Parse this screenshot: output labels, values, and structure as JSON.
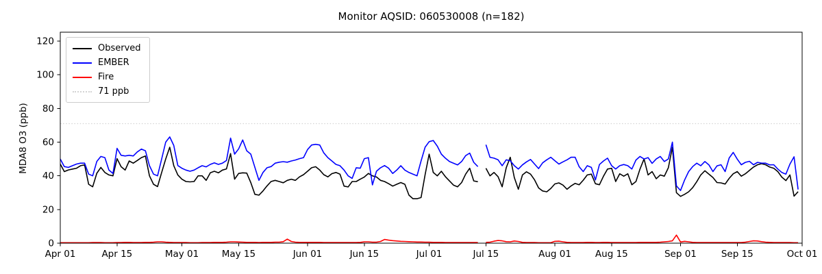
{
  "title": "Monitor AQSID: 060530008 (n=182)",
  "y_axis_label": "MDA8 O3 (ppb)",
  "colors": {
    "observed": "#000000",
    "ember": "#0000ff",
    "fire": "#ff0000",
    "threshold": "#d3d3d3",
    "axis": "#000000",
    "legend_border": "#cccccc"
  },
  "legend": [
    {
      "label": "Observed",
      "color": "#000000",
      "style": "solid"
    },
    {
      "label": "EMBER",
      "color": "#0000ff",
      "style": "solid"
    },
    {
      "label": "Fire",
      "color": "#ff0000",
      "style": "solid"
    },
    {
      "label": "71 ppb",
      "color": "#d3d3d3",
      "style": "dotted"
    }
  ],
  "chart_data": {
    "type": "line",
    "title": "Monitor AQSID: 060530008 (n=182)",
    "xlabel": "",
    "ylabel": "MDA8 O3 (ppb)",
    "ylim": [
      0,
      125.3
    ],
    "y_ticks": [
      0,
      20,
      40,
      60,
      80,
      100,
      120
    ],
    "x_total_days": 183,
    "x_tick_labels": [
      "Apr 01",
      "Apr 15",
      "May 01",
      "May 15",
      "Jun 01",
      "Jun 15",
      "Jul 01",
      "Jul 15",
      "Aug 01",
      "Aug 15",
      "Sep 01",
      "Sep 15",
      "Oct 01"
    ],
    "x_tick_days": [
      0,
      14,
      30,
      44,
      61,
      75,
      91,
      105,
      122,
      136,
      153,
      167,
      183
    ],
    "threshold": {
      "label": "71 ppb",
      "value": 71,
      "color": "#d3d3d3",
      "style": "dotted"
    },
    "legend_position": "upper left",
    "grid": false,
    "n_observations": 182,
    "missing_day_index": 104,
    "series": [
      {
        "name": "Observed",
        "color": "#000000",
        "values": [
          47.0,
          42.5,
          43.5,
          44.0,
          44.5,
          46.0,
          46.5,
          35.0,
          33.5,
          41.5,
          45.0,
          42.0,
          40.5,
          40.0,
          50.2,
          45.4,
          43.4,
          48.8,
          47.5,
          49.1,
          50.8,
          51.8,
          40.0,
          35.0,
          33.6,
          42.0,
          50.0,
          57.0,
          46.0,
          40.5,
          38.0,
          36.6,
          36.4,
          36.6,
          40.0,
          40.0,
          37.3,
          41.8,
          42.7,
          41.8,
          43.4,
          44.1,
          53.2,
          38.0,
          41.4,
          41.8,
          41.6,
          36.0,
          29.0,
          28.5,
          31.0,
          34.0,
          36.6,
          37.3,
          36.6,
          35.9,
          37.3,
          38.0,
          37.3,
          39.4,
          40.7,
          42.7,
          44.8,
          45.4,
          43.4,
          40.7,
          39.4,
          41.3,
          42.0,
          41.0,
          33.9,
          33.4,
          36.6,
          36.6,
          38.0,
          39.3,
          41.4,
          40.0,
          39.3,
          37.3,
          36.6,
          35.3,
          33.9,
          35.0,
          36.0,
          35.0,
          28.5,
          26.4,
          26.4,
          27.1,
          40.7,
          52.9,
          42.0,
          40.0,
          42.7,
          39.5,
          37.0,
          34.5,
          33.5,
          36.0,
          41.0,
          44.5,
          37.0,
          36.5,
          null,
          44.5,
          40.0,
          42.0,
          39.5,
          33.5,
          44.8,
          51.0,
          39.0,
          32.0,
          40.5,
          42.4,
          41.0,
          37.6,
          32.8,
          31.0,
          30.5,
          32.5,
          35.2,
          35.8,
          34.5,
          32.0,
          34.0,
          35.5,
          34.7,
          37.4,
          40.5,
          41.0,
          35.3,
          34.7,
          39.8,
          44.0,
          44.5,
          36.6,
          41.2,
          39.8,
          41.2,
          34.7,
          36.6,
          44.0,
          50.0,
          40.5,
          42.5,
          38.3,
          40.5,
          39.8,
          44.8,
          57.0,
          30.0,
          27.8,
          29.0,
          30.5,
          33.0,
          36.5,
          40.5,
          43.0,
          41.0,
          39.0,
          36.0,
          35.8,
          35.1,
          38.5,
          41.2,
          42.5,
          39.8,
          41.2,
          43.2,
          45.2,
          46.6,
          47.2,
          46.6,
          45.2,
          44.5,
          42.5,
          39.2,
          37.2,
          40.5,
          27.9,
          30.6
        ]
      },
      {
        "name": "EMBER",
        "color": "#0000ff",
        "values": [
          50.0,
          45.5,
          45.0,
          46.0,
          47.0,
          47.5,
          47.5,
          41.0,
          40.0,
          48.5,
          51.5,
          50.8,
          43.4,
          41.4,
          56.3,
          52.2,
          51.8,
          52.2,
          51.8,
          54.2,
          55.9,
          54.9,
          46.0,
          41.0,
          40.0,
          50.0,
          60.0,
          63.1,
          58.0,
          46.1,
          44.5,
          43.4,
          42.7,
          43.4,
          44.8,
          46.0,
          45.3,
          46.8,
          47.7,
          46.8,
          47.5,
          49.1,
          62.4,
          52.9,
          56.0,
          61.3,
          54.9,
          52.9,
          45.0,
          37.3,
          42.0,
          44.8,
          45.5,
          47.5,
          48.1,
          48.4,
          48.1,
          48.8,
          49.4,
          50.2,
          50.8,
          55.6,
          58.3,
          58.7,
          58.3,
          53.6,
          50.8,
          48.8,
          46.8,
          46.0,
          43.4,
          40.0,
          38.5,
          44.8,
          44.5,
          50.2,
          50.8,
          34.6,
          42.7,
          44.8,
          46.1,
          44.5,
          41.4,
          43.4,
          46.0,
          43.4,
          42.0,
          41.0,
          40.0,
          48.8,
          57.0,
          60.3,
          61.0,
          57.6,
          52.9,
          50.5,
          48.5,
          47.5,
          46.5,
          48.5,
          52.0,
          53.5,
          48.0,
          45.5,
          null,
          58.5,
          51.0,
          50.5,
          49.5,
          46.0,
          49.5,
          49.0,
          46.0,
          44.0,
          46.5,
          48.3,
          49.7,
          47.0,
          44.3,
          47.7,
          49.5,
          51.0,
          49.0,
          47.0,
          48.3,
          49.5,
          51.0,
          51.0,
          45.4,
          42.5,
          46.0,
          45.0,
          37.5,
          46.7,
          48.8,
          50.5,
          46.0,
          44.0,
          46.0,
          46.7,
          46.0,
          44.0,
          49.4,
          51.5,
          50.0,
          50.8,
          47.4,
          50.0,
          51.5,
          48.5,
          50.0,
          60.0,
          34.0,
          31.3,
          37.5,
          42.5,
          45.5,
          47.5,
          46.0,
          48.5,
          46.5,
          42.5,
          45.9,
          46.6,
          42.5,
          50.6,
          53.9,
          49.9,
          46.6,
          48.0,
          48.6,
          46.6,
          48.0,
          47.5,
          47.5,
          46.5,
          46.6,
          44.0,
          42.0,
          41.0,
          47.0,
          51.3,
          31.9
        ]
      },
      {
        "name": "Fire",
        "color": "#ff0000",
        "values": [
          0.3,
          0.3,
          0.3,
          0.3,
          0.3,
          0.3,
          0.3,
          0.3,
          0.4,
          0.4,
          0.4,
          0.3,
          0.3,
          0.3,
          0.4,
          0.4,
          0.5,
          0.5,
          0.4,
          0.4,
          0.4,
          0.5,
          0.5,
          0.6,
          0.8,
          0.8,
          0.6,
          0.5,
          0.4,
          0.4,
          0.4,
          0.4,
          0.3,
          0.3,
          0.3,
          0.4,
          0.4,
          0.4,
          0.5,
          0.5,
          0.5,
          0.6,
          0.8,
          0.8,
          0.7,
          0.6,
          0.5,
          0.5,
          0.5,
          0.4,
          0.5,
          0.5,
          0.5,
          0.6,
          0.6,
          0.9,
          2.4,
          1.0,
          0.6,
          0.5,
          0.5,
          0.5,
          0.5,
          0.5,
          0.5,
          0.4,
          0.4,
          0.4,
          0.4,
          0.4,
          0.4,
          0.4,
          0.4,
          0.4,
          0.5,
          0.8,
          0.8,
          0.6,
          0.6,
          1.0,
          2.2,
          1.8,
          1.5,
          1.3,
          1.1,
          1.0,
          0.9,
          0.8,
          0.7,
          0.7,
          0.6,
          0.6,
          0.5,
          0.5,
          0.5,
          0.4,
          0.4,
          0.4,
          0.4,
          0.4,
          0.4,
          0.4,
          0.4,
          0.4,
          null,
          0.5,
          0.6,
          1.2,
          1.6,
          1.4,
          0.9,
          0.8,
          1.3,
          1.0,
          0.5,
          0.4,
          0.4,
          0.4,
          0.3,
          0.3,
          0.3,
          0.3,
          1.1,
          1.2,
          0.8,
          0.5,
          0.4,
          0.4,
          0.4,
          0.4,
          0.5,
          0.5,
          0.4,
          0.4,
          0.5,
          0.5,
          0.4,
          0.4,
          0.4,
          0.4,
          0.4,
          0.4,
          0.4,
          0.5,
          0.5,
          0.5,
          0.5,
          0.5,
          0.6,
          0.8,
          1.0,
          1.4,
          4.8,
          0.7,
          1.1,
          0.8,
          0.5,
          0.4,
          0.4,
          0.4,
          0.4,
          0.4,
          0.4,
          0.4,
          0.4,
          0.4,
          0.4,
          0.4,
          0.4,
          0.6,
          1.0,
          1.4,
          1.3,
          0.9,
          0.6,
          0.5,
          0.4,
          0.4,
          0.4,
          0.4,
          0.4,
          0.3,
          0.3
        ]
      }
    ]
  }
}
